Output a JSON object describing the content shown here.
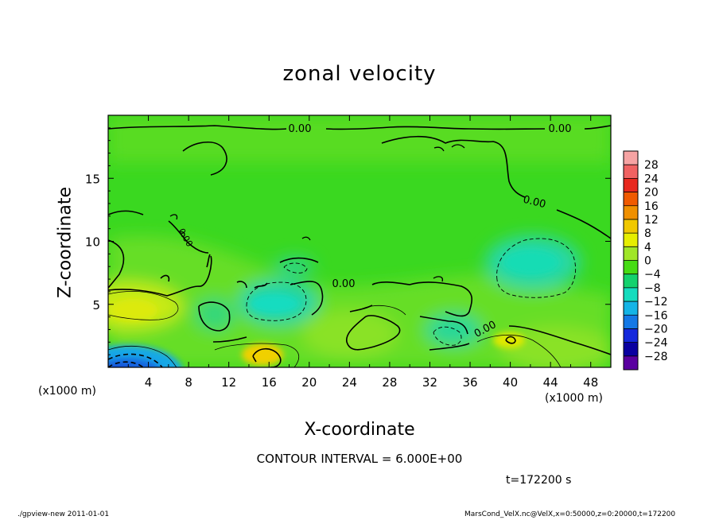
{
  "chart_data": {
    "type": "heatmap",
    "title": "zonal velocity",
    "xlabel": "X-coordinate",
    "ylabel": "Z-coordinate",
    "x_unit": "(x1000 m)",
    "xlim": [
      0,
      50
    ],
    "ylim": [
      0,
      20
    ],
    "x_ticks": [
      4,
      8,
      12,
      16,
      20,
      24,
      28,
      32,
      36,
      40,
      44,
      48
    ],
    "y_ticks": [
      5,
      10,
      15
    ],
    "contour_interval_text": "CONTOUR INTERVAL = 6.000E+00",
    "contour_label": "0.00",
    "colorbar": {
      "labels": [
        "28",
        "24",
        "20",
        "16",
        "12",
        "8",
        "4",
        "0",
        "−4",
        "−8",
        "−12",
        "−16",
        "−20",
        "−24",
        "−28"
      ],
      "colors": [
        "#f6a3a3",
        "#f06262",
        "#e8281e",
        "#f05a00",
        "#f09000",
        "#f0c800",
        "#e6ee00",
        "#a0e628",
        "#46dc14",
        "#14d26e",
        "#14dcbe",
        "#14b4e6",
        "#1478e6",
        "#1428dc",
        "#0a00a0",
        "#5a00a0"
      ]
    },
    "regions": [
      {
        "type": "negative",
        "x": 4,
        "z": 0.8,
        "value": -18
      },
      {
        "type": "negative",
        "x": 18.5,
        "z": 5.3,
        "value": -8
      },
      {
        "type": "negative",
        "x": 41,
        "z": 8.5,
        "value": -7
      },
      {
        "type": "negative",
        "x": 34,
        "z": 3,
        "value": -7
      },
      {
        "type": "positive",
        "x": 2,
        "z": 4.5,
        "value": 7
      },
      {
        "type": "positive",
        "x": 15.5,
        "z": 1,
        "value": 9
      },
      {
        "type": "positive",
        "x": 40.5,
        "z": 2.2,
        "value": 8
      }
    ]
  },
  "time_text": "t=172200 s",
  "footer": {
    "left": "./gpview-new  2011-01-01",
    "right": "MarsCond_VelX.nc@VelX,x=0:50000,z=0:20000,t=172200"
  }
}
